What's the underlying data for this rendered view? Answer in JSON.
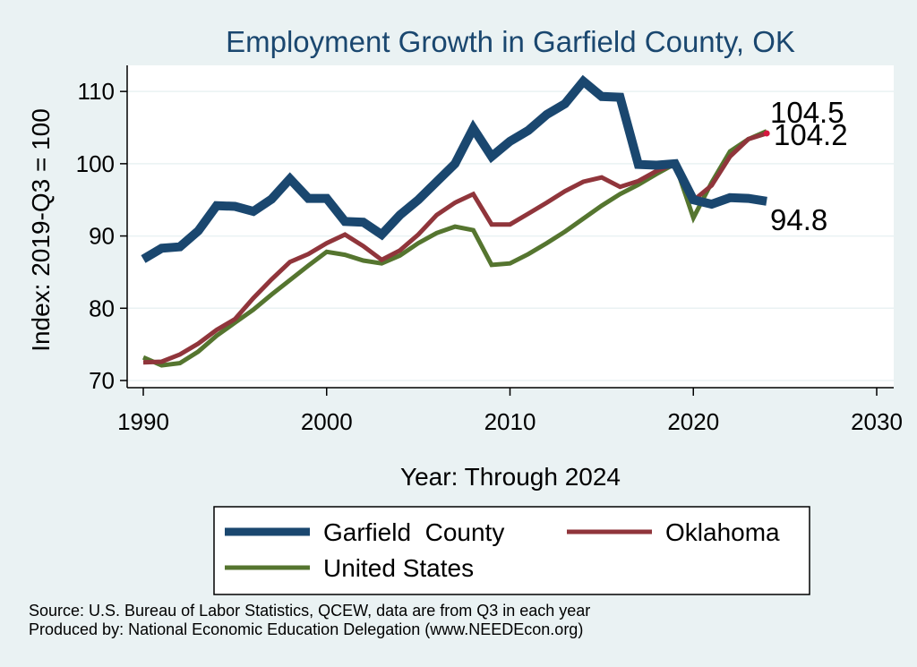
{
  "chart_data": {
    "type": "line",
    "title": "Employment Growth in Garfield County, OK",
    "xlabel": "Year: Through 2024",
    "ylabel": "Index: 2019-Q3 = 100",
    "xlim": [
      1990,
      2030
    ],
    "ylim": [
      70,
      112
    ],
    "xticks": [
      1990,
      2000,
      2010,
      2020,
      2030
    ],
    "yticks": [
      70,
      80,
      90,
      100,
      110
    ],
    "grid": true,
    "x": [
      1990,
      1991,
      1992,
      1993,
      1994,
      1995,
      1996,
      1997,
      1998,
      1999,
      2000,
      2001,
      2002,
      2003,
      2004,
      2005,
      2006,
      2007,
      2008,
      2009,
      2010,
      2011,
      2012,
      2013,
      2014,
      2015,
      2016,
      2017,
      2018,
      2019,
      2020,
      2021,
      2022,
      2023,
      2024
    ],
    "series": [
      {
        "name": "Garfield  County",
        "color": "#1a476f",
        "width": "thick",
        "values": [
          86.8,
          88.3,
          88.5,
          90.7,
          94.2,
          94.1,
          93.4,
          95.1,
          97.9,
          95.2,
          95.2,
          92.0,
          91.9,
          90.2,
          92.9,
          95.0,
          97.5,
          100.0,
          104.9,
          101.0,
          103.1,
          104.6,
          106.8,
          108.3,
          111.4,
          109.3,
          109.2,
          99.9,
          99.8,
          100.0,
          95.0,
          94.4,
          95.3,
          95.2,
          94.8
        ]
      },
      {
        "name": "Oklahoma",
        "color": "#90353b",
        "width": "thin",
        "values": [
          72.5,
          72.6,
          73.6,
          75.1,
          77.0,
          78.5,
          81.4,
          84.0,
          86.4,
          87.5,
          89.0,
          90.2,
          88.6,
          86.7,
          88.0,
          90.2,
          92.9,
          94.6,
          95.8,
          91.6,
          91.6,
          93.1,
          94.6,
          96.2,
          97.5,
          98.1,
          96.8,
          97.6,
          99.0,
          100.0,
          94.9,
          97.0,
          101.0,
          103.4,
          104.2
        ]
      },
      {
        "name": "United States",
        "color": "#55752f",
        "width": "thin",
        "values": [
          73.2,
          72.1,
          72.4,
          74.0,
          76.2,
          78.0,
          79.8,
          81.9,
          83.9,
          85.9,
          87.8,
          87.4,
          86.6,
          86.2,
          87.3,
          89.0,
          90.4,
          91.3,
          90.8,
          86.0,
          86.2,
          87.5,
          89.0,
          90.6,
          92.4,
          94.2,
          95.8,
          97.1,
          98.6,
          100.0,
          92.5,
          97.4,
          101.7,
          103.4,
          104.5
        ]
      }
    ],
    "end_labels": [
      "104.5",
      "104.2",
      "94.8"
    ],
    "legend_position": "bottom"
  },
  "source_note": "Source: U.S. Bureau of Labor Statistics, QCEW, data are from Q3 in each year",
  "produced_by": "Produced by: National Economic Education Delegation (www.NEEDEcon.org)"
}
